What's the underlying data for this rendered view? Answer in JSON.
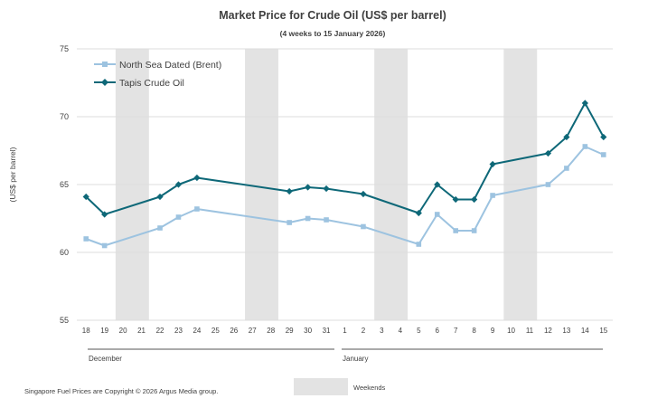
{
  "chart_data": {
    "type": "line",
    "title": "Market Price for  Crude Oil  (US$ per barrel)",
    "subtitle": "(4 weeks to 15 January 2026)",
    "ylabel": "(US$ per barrel)",
    "ylim": [
      55,
      75
    ],
    "yticks": [
      55,
      60,
      65,
      70,
      75
    ],
    "grid": true,
    "legend_position": "top-left",
    "categories": [
      "18",
      "19",
      "20",
      "21",
      "22",
      "23",
      "24",
      "25",
      "26",
      "27",
      "28",
      "29",
      "30",
      "31",
      "1",
      "2",
      "3",
      "4",
      "5",
      "6",
      "7",
      "8",
      "9",
      "10",
      "11",
      "12",
      "13",
      "14",
      "15"
    ],
    "month_labels": [
      {
        "label": "December",
        "start": "18",
        "end": "31"
      },
      {
        "label": "January",
        "start": "1",
        "end": "15"
      }
    ],
    "weekend_groups": [
      [
        "20",
        "21"
      ],
      [
        "27",
        "28"
      ],
      [
        "3",
        "4"
      ],
      [
        "10",
        "11"
      ]
    ],
    "weekend_legend": "Weekends",
    "series": [
      {
        "name": "North Sea Dated (Brent)",
        "color": "#9dc3e0",
        "marker": "square",
        "values": [
          61.0,
          60.5,
          null,
          null,
          61.8,
          62.6,
          63.2,
          null,
          null,
          null,
          null,
          62.2,
          62.5,
          62.4,
          null,
          61.9,
          null,
          null,
          60.6,
          62.8,
          61.6,
          61.6,
          64.2,
          null,
          null,
          65.0,
          66.2,
          67.8,
          67.2
        ]
      },
      {
        "name": "Tapis Crude Oil",
        "color": "#0e6878",
        "marker": "diamond",
        "values": [
          64.1,
          62.8,
          null,
          null,
          64.1,
          65.0,
          65.5,
          null,
          null,
          null,
          null,
          64.5,
          64.8,
          64.7,
          null,
          64.3,
          null,
          null,
          62.9,
          65.0,
          63.9,
          63.9,
          66.5,
          null,
          null,
          67.3,
          68.5,
          71.0,
          68.5
        ]
      }
    ],
    "footnote": "Singapore  Fuel  Prices  are Copyright  ©  2026  Argus  Media group."
  }
}
